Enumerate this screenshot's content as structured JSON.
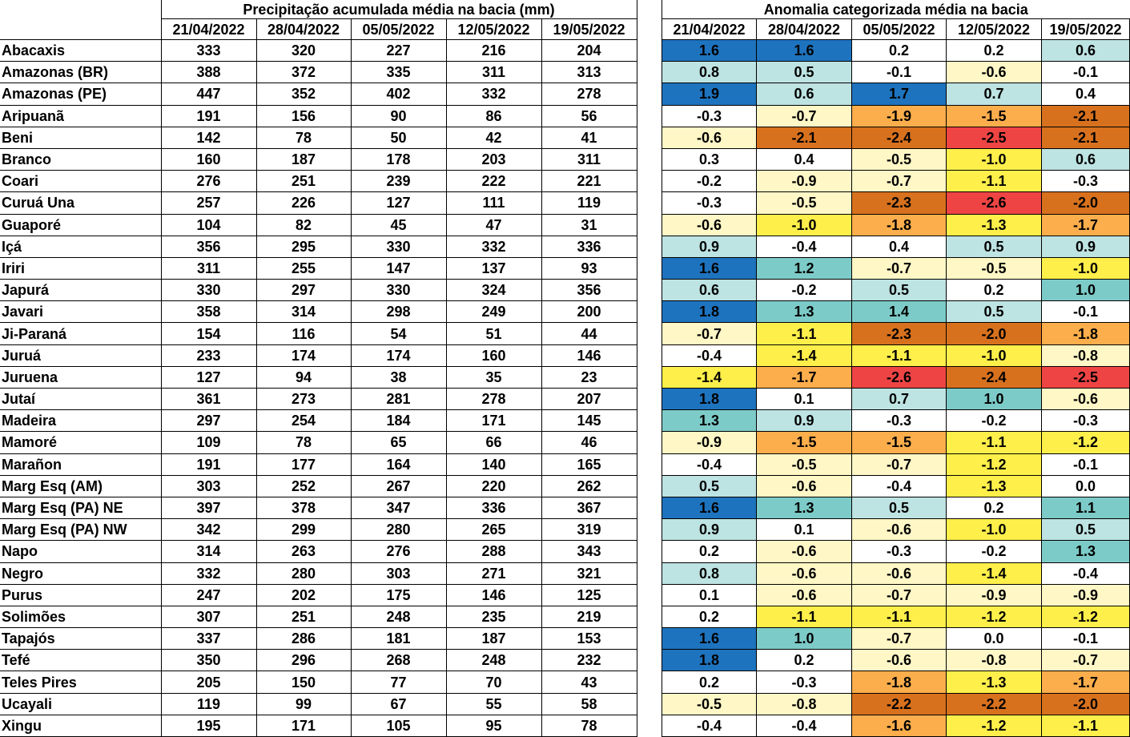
{
  "precip_title": "Precipitação acumulada média na bacia (mm)",
  "anom_title": "Anomalia categorizada média na bacia",
  "dates": [
    "21/04/2022",
    "28/04/2022",
    "05/05/2022",
    "12/05/2022",
    "19/05/2022"
  ],
  "colors": {
    "dark_blue": "#1e73be",
    "teal": "#7dcbc8",
    "light_blue": "#bde3e2",
    "white": "#ffffff",
    "light_yellow": "#fff7c6",
    "yellow": "#ffef4a",
    "light_orange": "#fcae4c",
    "orange": "#d8711e",
    "red": "#ef4444"
  },
  "rows": [
    {
      "name": "Abacaxis",
      "precip": [
        "333",
        "320",
        "227",
        "216",
        "204"
      ],
      "anom": [
        "1.6",
        "1.6",
        "0.2",
        "0.2",
        "0.6"
      ]
    },
    {
      "name": "Amazonas (BR)",
      "precip": [
        "388",
        "372",
        "335",
        "311",
        "313"
      ],
      "anom": [
        "0.8",
        "0.5",
        "-0.1",
        "-0.6",
        "-0.1"
      ]
    },
    {
      "name": "Amazonas (PE)",
      "precip": [
        "447",
        "352",
        "402",
        "332",
        "278"
      ],
      "anom": [
        "1.9",
        "0.6",
        "1.7",
        "0.7",
        "0.4"
      ]
    },
    {
      "name": "Aripuanã",
      "precip": [
        "191",
        "156",
        "90",
        "86",
        "56"
      ],
      "anom": [
        "-0.3",
        "-0.7",
        "-1.9",
        "-1.5",
        "-2.1"
      ]
    },
    {
      "name": "Beni",
      "precip": [
        "142",
        "78",
        "50",
        "42",
        "41"
      ],
      "anom": [
        "-0.6",
        "-2.1",
        "-2.4",
        "-2.5",
        "-2.1"
      ]
    },
    {
      "name": "Branco",
      "precip": [
        "160",
        "187",
        "178",
        "203",
        "311"
      ],
      "anom": [
        "0.3",
        "0.4",
        "-0.5",
        "-1.0",
        "0.6"
      ]
    },
    {
      "name": "Coari",
      "precip": [
        "276",
        "251",
        "239",
        "222",
        "221"
      ],
      "anom": [
        "-0.2",
        "-0.9",
        "-0.7",
        "-1.1",
        "-0.3"
      ]
    },
    {
      "name": "Curuá Una",
      "precip": [
        "257",
        "226",
        "127",
        "111",
        "119"
      ],
      "anom": [
        "-0.3",
        "-0.5",
        "-2.3",
        "-2.6",
        "-2.0"
      ]
    },
    {
      "name": "Guaporé",
      "precip": [
        "104",
        "82",
        "45",
        "47",
        "31"
      ],
      "anom": [
        "-0.6",
        "-1.0",
        "-1.8",
        "-1.3",
        "-1.7"
      ]
    },
    {
      "name": "Içá",
      "precip": [
        "356",
        "295",
        "330",
        "332",
        "336"
      ],
      "anom": [
        "0.9",
        "-0.4",
        "0.4",
        "0.5",
        "0.9"
      ]
    },
    {
      "name": "Iriri",
      "precip": [
        "311",
        "255",
        "147",
        "137",
        "93"
      ],
      "anom": [
        "1.6",
        "1.2",
        "-0.7",
        "-0.5",
        "-1.0"
      ]
    },
    {
      "name": "Japurá",
      "precip": [
        "330",
        "297",
        "330",
        "324",
        "356"
      ],
      "anom": [
        "0.6",
        "-0.2",
        "0.5",
        "0.2",
        "1.0"
      ]
    },
    {
      "name": "Javari",
      "precip": [
        "358",
        "314",
        "298",
        "249",
        "200"
      ],
      "anom": [
        "1.8",
        "1.3",
        "1.4",
        "0.5",
        "-0.1"
      ]
    },
    {
      "name": "Ji-Paraná",
      "precip": [
        "154",
        "116",
        "54",
        "51",
        "44"
      ],
      "anom": [
        "-0.7",
        "-1.1",
        "-2.3",
        "-2.0",
        "-1.8"
      ]
    },
    {
      "name": "Juruá",
      "precip": [
        "233",
        "174",
        "174",
        "160",
        "146"
      ],
      "anom": [
        "-0.4",
        "-1.4",
        "-1.1",
        "-1.0",
        "-0.8"
      ]
    },
    {
      "name": "Juruena",
      "precip": [
        "127",
        "94",
        "38",
        "35",
        "23"
      ],
      "anom": [
        "-1.4",
        "-1.7",
        "-2.6",
        "-2.4",
        "-2.5"
      ]
    },
    {
      "name": "Jutaí",
      "precip": [
        "361",
        "273",
        "281",
        "278",
        "207"
      ],
      "anom": [
        "1.8",
        "0.1",
        "0.7",
        "1.0",
        "-0.6"
      ]
    },
    {
      "name": "Madeira",
      "precip": [
        "297",
        "254",
        "184",
        "171",
        "145"
      ],
      "anom": [
        "1.3",
        "0.9",
        "-0.3",
        "-0.2",
        "-0.3"
      ]
    },
    {
      "name": "Mamoré",
      "precip": [
        "109",
        "78",
        "65",
        "66",
        "46"
      ],
      "anom": [
        "-0.9",
        "-1.5",
        "-1.5",
        "-1.1",
        "-1.2"
      ]
    },
    {
      "name": "Marañon",
      "precip": [
        "191",
        "177",
        "164",
        "140",
        "165"
      ],
      "anom": [
        "-0.4",
        "-0.5",
        "-0.7",
        "-1.2",
        "-0.1"
      ]
    },
    {
      "name": "Marg Esq (AM)",
      "precip": [
        "303",
        "252",
        "267",
        "220",
        "262"
      ],
      "anom": [
        "0.5",
        "-0.6",
        "-0.4",
        "-1.3",
        "0.0"
      ]
    },
    {
      "name": "Marg Esq (PA) NE",
      "precip": [
        "397",
        "378",
        "347",
        "336",
        "367"
      ],
      "anom": [
        "1.6",
        "1.3",
        "0.5",
        "0.2",
        "1.1"
      ]
    },
    {
      "name": "Marg Esq (PA) NW",
      "precip": [
        "342",
        "299",
        "280",
        "265",
        "319"
      ],
      "anom": [
        "0.9",
        "0.1",
        "-0.6",
        "-1.0",
        "0.5"
      ]
    },
    {
      "name": "Napo",
      "precip": [
        "314",
        "263",
        "276",
        "288",
        "343"
      ],
      "anom": [
        "0.2",
        "-0.6",
        "-0.3",
        "-0.2",
        "1.3"
      ]
    },
    {
      "name": "Negro",
      "precip": [
        "332",
        "280",
        "303",
        "271",
        "321"
      ],
      "anom": [
        "0.8",
        "-0.6",
        "-0.6",
        "-1.4",
        "-0.4"
      ]
    },
    {
      "name": "Purus",
      "precip": [
        "247",
        "202",
        "175",
        "146",
        "125"
      ],
      "anom": [
        "0.1",
        "-0.6",
        "-0.7",
        "-0.9",
        "-0.9"
      ]
    },
    {
      "name": "Solimões",
      "precip": [
        "307",
        "251",
        "248",
        "235",
        "219"
      ],
      "anom": [
        "0.2",
        "-1.1",
        "-1.1",
        "-1.2",
        "-1.2"
      ]
    },
    {
      "name": "Tapajós",
      "precip": [
        "337",
        "286",
        "181",
        "187",
        "153"
      ],
      "anom": [
        "1.6",
        "1.0",
        "-0.7",
        "0.0",
        "-0.1"
      ]
    },
    {
      "name": "Tefé",
      "precip": [
        "350",
        "296",
        "268",
        "248",
        "232"
      ],
      "anom": [
        "1.8",
        "0.2",
        "-0.6",
        "-0.8",
        "-0.7"
      ]
    },
    {
      "name": "Teles Pires",
      "precip": [
        "205",
        "150",
        "77",
        "70",
        "43"
      ],
      "anom": [
        "0.2",
        "-0.3",
        "-1.8",
        "-1.3",
        "-1.7"
      ]
    },
    {
      "name": "Ucayali",
      "precip": [
        "119",
        "99",
        "67",
        "55",
        "58"
      ],
      "anom": [
        "-0.5",
        "-0.8",
        "-2.2",
        "-2.2",
        "-2.0"
      ]
    },
    {
      "name": "Xingu",
      "precip": [
        "195",
        "171",
        "105",
        "95",
        "78"
      ],
      "anom": [
        "-0.4",
        "-0.4",
        "-1.6",
        "-1.2",
        "-1.1"
      ]
    }
  ]
}
